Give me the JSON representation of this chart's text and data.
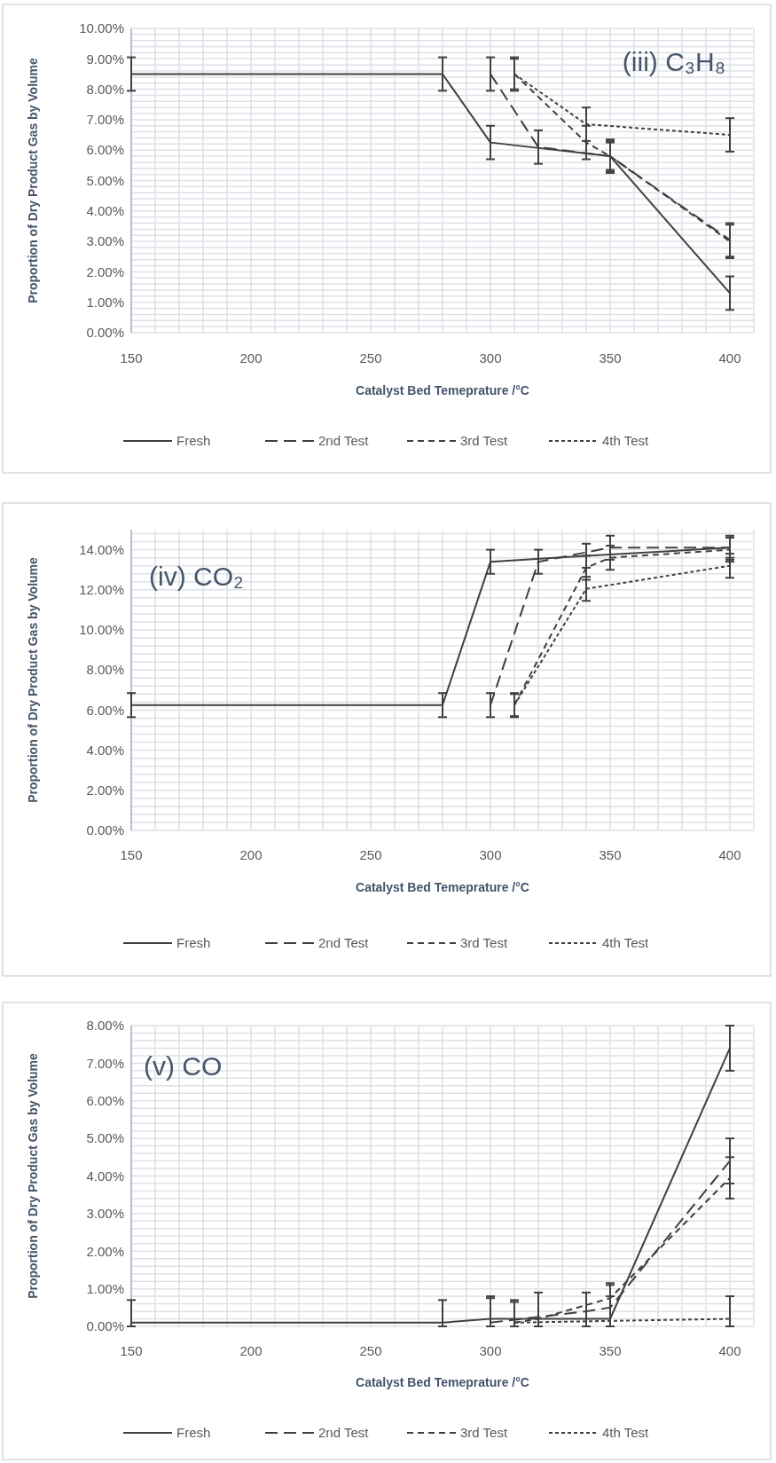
{
  "chart_data": [
    {
      "type": "line",
      "ylabel": "Proportion of Dry Product Gas by Volume",
      "xlabel": "Catalyst Bed Temeprature /°C",
      "annotations": [
        "(iii) C₃H₈"
      ],
      "grid": true,
      "legend": "bottom",
      "marker": "none",
      "xlim": [
        150,
        410
      ],
      "ylim": [
        0,
        10
      ],
      "xticks": [
        150,
        {
          "value": 160,
          "label": null
        },
        {
          "value": 170,
          "label": null
        },
        {
          "value": 180,
          "label": null
        },
        {
          "value": 190,
          "label": null
        },
        200,
        {
          "value": 210,
          "label": null
        },
        {
          "value": 220,
          "label": null
        },
        {
          "value": 230,
          "label": null
        },
        {
          "value": 240,
          "label": null
        },
        250,
        {
          "value": 260,
          "label": null
        },
        {
          "value": 270,
          "label": null
        },
        {
          "value": 280,
          "label": null
        },
        {
          "value": 290,
          "label": null
        },
        300,
        {
          "value": 310,
          "label": null
        },
        {
          "value": 320,
          "label": null
        },
        {
          "value": 330,
          "label": null
        },
        {
          "value": 340,
          "label": null
        },
        350,
        {
          "value": 360,
          "label": null
        },
        {
          "value": 370,
          "label": null
        },
        {
          "value": 380,
          "label": null
        },
        {
          "value": 390,
          "label": null
        },
        400,
        {
          "value": 410,
          "label": null
        }
      ],
      "yticks": [
        {
          "value": 0,
          "label": "0.00%"
        },
        {
          "value": 0.2,
          "label": null
        },
        {
          "value": 0.4,
          "label": null
        },
        {
          "value": 0.6,
          "label": null
        },
        {
          "value": 0.8,
          "label": null
        },
        {
          "value": 1,
          "label": "1.00%"
        },
        {
          "value": 1.2,
          "label": null
        },
        {
          "value": 1.4,
          "label": null
        },
        {
          "value": 1.6,
          "label": null
        },
        {
          "value": 1.8,
          "label": null
        },
        {
          "value": 2,
          "label": "2.00%"
        },
        {
          "value": 2.2,
          "label": null
        },
        {
          "value": 2.4,
          "label": null
        },
        {
          "value": 2.6,
          "label": null
        },
        {
          "value": 2.8,
          "label": null
        },
        {
          "value": 3,
          "label": "3.00%"
        },
        {
          "value": 3.2,
          "label": null
        },
        {
          "value": 3.4,
          "label": null
        },
        {
          "value": 3.6,
          "label": null
        },
        {
          "value": 3.8,
          "label": null
        },
        {
          "value": 4,
          "label": "4.00%"
        },
        {
          "value": 4.2,
          "label": null
        },
        {
          "value": 4.4,
          "label": null
        },
        {
          "value": 4.6,
          "label": null
        },
        {
          "value": 4.8,
          "label": null
        },
        {
          "value": 5,
          "label": "5.00%"
        },
        {
          "value": 5.2,
          "label": null
        },
        {
          "value": 5.4,
          "label": null
        },
        {
          "value": 5.6,
          "label": null
        },
        {
          "value": 5.8,
          "label": null
        },
        {
          "value": 6,
          "label": "6.00%"
        },
        {
          "value": 6.2,
          "label": null
        },
        {
          "value": 6.4,
          "label": null
        },
        {
          "value": 6.6,
          "label": null
        },
        {
          "value": 6.8,
          "label": null
        },
        {
          "value": 7,
          "label": "7.00%"
        },
        {
          "value": 7.2,
          "label": null
        },
        {
          "value": 7.4,
          "label": null
        },
        {
          "value": 7.6,
          "label": null
        },
        {
          "value": 7.8,
          "label": null
        },
        {
          "value": 8,
          "label": "8.00%"
        },
        {
          "value": 8.2,
          "label": null
        },
        {
          "value": 8.4,
          "label": null
        },
        {
          "value": 8.6,
          "label": null
        },
        {
          "value": 8.8,
          "label": null
        },
        {
          "value": 9,
          "label": "9.00%"
        },
        {
          "value": 9.2,
          "label": null
        },
        {
          "value": 9.4,
          "label": null
        },
        {
          "value": 9.6,
          "label": null
        },
        {
          "value": 9.8,
          "label": null
        },
        {
          "value": 10,
          "label": "10.00%"
        }
      ],
      "series": [
        {
          "name": "Fresh",
          "color": "#404040",
          "line_style": "solid",
          "x": [
            150,
            280,
            300,
            350,
            400
          ],
          "values": [
            8.5,
            8.5,
            6.25,
            5.8,
            1.3
          ],
          "errors": [
            0.55,
            0.55,
            0.55,
            0.55,
            0.55
          ]
        },
        {
          "name": "2nd Test",
          "color": "#404040",
          "line_style": "dashed",
          "x": [
            300,
            320,
            350,
            400
          ],
          "values": [
            8.5,
            6.1,
            5.8,
            3.05
          ],
          "errors": [
            0.55,
            0.55,
            0.5,
            0.55
          ]
        },
        {
          "name": "3rd Test",
          "color": "#404040",
          "line_style": "dashed",
          "x": [
            310,
            340,
            350,
            400
          ],
          "values": [
            8.5,
            6.25,
            5.8,
            3.0
          ],
          "errors": [
            0.55,
            0.55,
            0.45,
            0.55
          ]
        },
        {
          "name": "4th Test",
          "color": "#404040",
          "line_style": "dotted",
          "x": [
            310,
            340,
            400
          ],
          "values": [
            8.5,
            6.85,
            6.5
          ],
          "errors": [
            0.5,
            0.55,
            0.55
          ]
        }
      ]
    },
    {
      "type": "line",
      "ylabel": "Proportion of Dry Product Gas by Volume",
      "xlabel": "Catalyst Bed Temeprature /°C",
      "annotations": [
        "(iv) CO₂"
      ],
      "grid": true,
      "legend": "bottom",
      "marker": "none",
      "xlim": [
        150,
        410
      ],
      "ylim": [
        0,
        15
      ],
      "xticks": [
        150,
        {
          "value": 160,
          "label": null
        },
        {
          "value": 170,
          "label": null
        },
        {
          "value": 180,
          "label": null
        },
        {
          "value": 190,
          "label": null
        },
        200,
        {
          "value": 210,
          "label": null
        },
        {
          "value": 220,
          "label": null
        },
        {
          "value": 230,
          "label": null
        },
        {
          "value": 240,
          "label": null
        },
        250,
        {
          "value": 260,
          "label": null
        },
        {
          "value": 270,
          "label": null
        },
        {
          "value": 280,
          "label": null
        },
        {
          "value": 290,
          "label": null
        },
        300,
        {
          "value": 310,
          "label": null
        },
        {
          "value": 320,
          "label": null
        },
        {
          "value": 330,
          "label": null
        },
        {
          "value": 340,
          "label": null
        },
        350,
        {
          "value": 360,
          "label": null
        },
        {
          "value": 370,
          "label": null
        },
        {
          "value": 380,
          "label": null
        },
        {
          "value": 390,
          "label": null
        },
        400,
        {
          "value": 410,
          "label": null
        }
      ],
      "yticks": [
        {
          "value": 0,
          "label": "0.00%"
        },
        {
          "value": 0.4,
          "label": null
        },
        {
          "value": 0.8,
          "label": null
        },
        {
          "value": 1.2,
          "label": null
        },
        {
          "value": 1.6,
          "label": null
        },
        {
          "value": 2,
          "label": "2.00%"
        },
        {
          "value": 2.4,
          "label": null
        },
        {
          "value": 2.8,
          "label": null
        },
        {
          "value": 3.2,
          "label": null
        },
        {
          "value": 3.6,
          "label": null
        },
        {
          "value": 4,
          "label": "4.00%"
        },
        {
          "value": 4.4,
          "label": null
        },
        {
          "value": 4.8,
          "label": null
        },
        {
          "value": 5.2,
          "label": null
        },
        {
          "value": 5.6,
          "label": null
        },
        {
          "value": 6,
          "label": "6.00%"
        },
        {
          "value": 6.4,
          "label": null
        },
        {
          "value": 6.8,
          "label": null
        },
        {
          "value": 7.2,
          "label": null
        },
        {
          "value": 7.6,
          "label": null
        },
        {
          "value": 8,
          "label": "8.00%"
        },
        {
          "value": 8.4,
          "label": null
        },
        {
          "value": 8.8,
          "label": null
        },
        {
          "value": 9.2,
          "label": null
        },
        {
          "value": 9.6,
          "label": null
        },
        {
          "value": 10,
          "label": "10.00%"
        },
        {
          "value": 10.4,
          "label": null
        },
        {
          "value": 10.8,
          "label": null
        },
        {
          "value": 11.2,
          "label": null
        },
        {
          "value": 11.6,
          "label": null
        },
        {
          "value": 12,
          "label": "12.00%"
        },
        {
          "value": 12.4,
          "label": null
        },
        {
          "value": 12.8,
          "label": null
        },
        {
          "value": 13.2,
          "label": null
        },
        {
          "value": 13.6,
          "label": null
        },
        {
          "value": 14,
          "label": "14.00%"
        },
        {
          "value": 14.4,
          "label": null
        },
        {
          "value": 14.8,
          "label": null
        }
      ],
      "series": [
        {
          "name": "Fresh",
          "color": "#404040",
          "line_style": "solid",
          "x": [
            150,
            280,
            300,
            340,
            400
          ],
          "values": [
            6.25,
            6.25,
            13.4,
            13.7,
            14.1
          ],
          "errors": [
            0.6,
            0.6,
            0.6,
            0.6,
            0.6
          ]
        },
        {
          "name": "2nd Test",
          "color": "#404040",
          "line_style": "dashed",
          "x": [
            300,
            320,
            350,
            400
          ],
          "values": [
            6.25,
            13.4,
            14.1,
            14.1
          ],
          "errors": [
            0.6,
            0.6,
            0.6,
            0.5
          ]
        },
        {
          "name": "3rd Test",
          "color": "#404040",
          "line_style": "dashed",
          "x": [
            310,
            340,
            350,
            400
          ],
          "values": [
            6.25,
            13.1,
            13.6,
            14.0
          ],
          "errors": [
            0.6,
            0.6,
            0.6,
            0.6
          ]
        },
        {
          "name": "4th Test",
          "color": "#404040",
          "line_style": "dotted",
          "x": [
            310,
            340,
            400
          ],
          "values": [
            6.25,
            12.05,
            13.2
          ],
          "errors": [
            0.55,
            0.6,
            0.6
          ]
        }
      ]
    },
    {
      "type": "line",
      "ylabel": "Proportion of Dry Product Gas by Volume",
      "xlabel": "Catalyst Bed Temeprature /°C",
      "annotations": [
        "(v) CO"
      ],
      "grid": true,
      "legend": "bottom",
      "marker": "none",
      "xlim": [
        150,
        410
      ],
      "ylim": [
        0,
        8
      ],
      "xticks": [
        150,
        {
          "value": 160,
          "label": null
        },
        {
          "value": 170,
          "label": null
        },
        {
          "value": 180,
          "label": null
        },
        {
          "value": 190,
          "label": null
        },
        200,
        {
          "value": 210,
          "label": null
        },
        {
          "value": 220,
          "label": null
        },
        {
          "value": 230,
          "label": null
        },
        {
          "value": 240,
          "label": null
        },
        250,
        {
          "value": 260,
          "label": null
        },
        {
          "value": 270,
          "label": null
        },
        {
          "value": 280,
          "label": null
        },
        {
          "value": 290,
          "label": null
        },
        300,
        {
          "value": 310,
          "label": null
        },
        {
          "value": 320,
          "label": null
        },
        {
          "value": 330,
          "label": null
        },
        {
          "value": 340,
          "label": null
        },
        350,
        {
          "value": 360,
          "label": null
        },
        {
          "value": 370,
          "label": null
        },
        {
          "value": 380,
          "label": null
        },
        {
          "value": 390,
          "label": null
        },
        400,
        {
          "value": 410,
          "label": null
        }
      ],
      "yticks": [
        {
          "value": 0,
          "label": "0.00%"
        },
        {
          "value": 0.2,
          "label": null
        },
        {
          "value": 0.4,
          "label": null
        },
        {
          "value": 0.6,
          "label": null
        },
        {
          "value": 0.8,
          "label": null
        },
        {
          "value": 1,
          "label": "1.00%"
        },
        {
          "value": 1.2,
          "label": null
        },
        {
          "value": 1.4,
          "label": null
        },
        {
          "value": 1.6,
          "label": null
        },
        {
          "value": 1.8,
          "label": null
        },
        {
          "value": 2,
          "label": "2.00%"
        },
        {
          "value": 2.2,
          "label": null
        },
        {
          "value": 2.4,
          "label": null
        },
        {
          "value": 2.6,
          "label": null
        },
        {
          "value": 2.8,
          "label": null
        },
        {
          "value": 3,
          "label": "3.00%"
        },
        {
          "value": 3.2,
          "label": null
        },
        {
          "value": 3.4,
          "label": null
        },
        {
          "value": 3.6,
          "label": null
        },
        {
          "value": 3.8,
          "label": null
        },
        {
          "value": 4,
          "label": "4.00%"
        },
        {
          "value": 4.2,
          "label": null
        },
        {
          "value": 4.4,
          "label": null
        },
        {
          "value": 4.6,
          "label": null
        },
        {
          "value": 4.8,
          "label": null
        },
        {
          "value": 5,
          "label": "5.00%"
        },
        {
          "value": 5.2,
          "label": null
        },
        {
          "value": 5.4,
          "label": null
        },
        {
          "value": 5.6,
          "label": null
        },
        {
          "value": 5.8,
          "label": null
        },
        {
          "value": 6,
          "label": "6.00%"
        },
        {
          "value": 6.2,
          "label": null
        },
        {
          "value": 6.4,
          "label": null
        },
        {
          "value": 6.6,
          "label": null
        },
        {
          "value": 6.8,
          "label": null
        },
        {
          "value": 7,
          "label": "7.00%"
        },
        {
          "value": 7.2,
          "label": null
        },
        {
          "value": 7.4,
          "label": null
        },
        {
          "value": 7.6,
          "label": null
        },
        {
          "value": 7.8,
          "label": null
        },
        {
          "value": 8,
          "label": "8.00%"
        }
      ],
      "series": [
        {
          "name": "Fresh",
          "color": "#404040",
          "line_style": "solid",
          "x": [
            150,
            280,
            300,
            350,
            400
          ],
          "values": [
            0.1,
            0.1,
            0.2,
            0.2,
            7.4
          ],
          "errors": [
            [
              0,
              0.7
            ],
            [
              0,
              0.7
            ],
            [
              0,
              0.75
            ],
            [
              0,
              0.8
            ],
            0.6
          ]
        },
        {
          "name": "2nd Test",
          "color": "#404040",
          "line_style": "dashed",
          "x": [
            300,
            340,
            350,
            400
          ],
          "values": [
            0.1,
            0.4,
            0.5,
            4.4
          ],
          "errors": [
            [
              0,
              0.8
            ],
            [
              0,
              0.9
            ],
            [
              0,
              1.1
            ],
            0.6
          ]
        },
        {
          "name": "3rd Test",
          "color": "#404040",
          "line_style": "dashed",
          "x": [
            310,
            320,
            350,
            400
          ],
          "values": [
            0.1,
            0.2,
            0.75,
            3.95
          ],
          "errors": [
            [
              0,
              0.7
            ],
            [
              0,
              0.9
            ],
            [
              0,
              1.15
            ],
            0.55
          ]
        },
        {
          "name": "4th Test",
          "color": "#404040",
          "line_style": "dotted",
          "x": [
            310,
            400
          ],
          "values": [
            0.1,
            0.2
          ],
          "errors": [
            [
              0,
              0.65
            ],
            [
              0,
              0.8
            ]
          ]
        }
      ]
    }
  ]
}
